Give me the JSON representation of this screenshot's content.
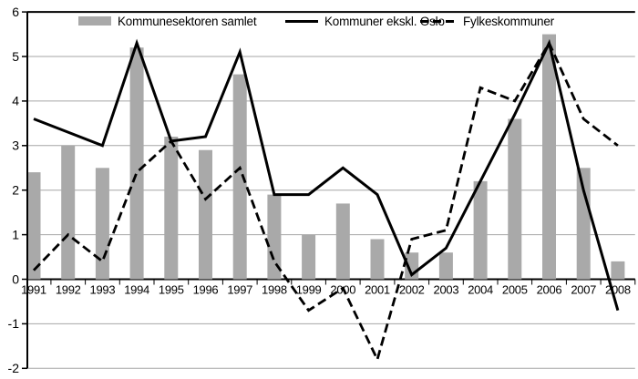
{
  "chart_data": {
    "type": "combo_bar_line",
    "title": "",
    "categories": [
      "1991",
      "1992",
      "1993",
      "1994",
      "1995",
      "1996",
      "1997",
      "1998",
      "1999",
      "2000",
      "2001",
      "2002",
      "2003",
      "2004",
      "2005",
      "2006",
      "2007",
      "2008"
    ],
    "series": [
      {
        "name": "Kommunesektoren samlet",
        "type": "bar",
        "color": "#a9a9a9",
        "values": [
          2.4,
          3.0,
          2.5,
          5.2,
          3.2,
          2.9,
          4.6,
          1.9,
          1.0,
          1.7,
          0.9,
          0.6,
          0.6,
          2.2,
          3.6,
          5.5,
          2.5,
          0.4
        ]
      },
      {
        "name": "Kommuner ekskl. Oslo",
        "type": "line",
        "style": "solid",
        "color": "#000000",
        "values": [
          3.6,
          3.3,
          3.0,
          5.3,
          3.1,
          3.2,
          5.1,
          1.9,
          1.9,
          2.5,
          1.9,
          0.1,
          0.7,
          2.2,
          3.7,
          5.3,
          2.0,
          -0.7
        ]
      },
      {
        "name": "Fylkeskommuner",
        "type": "line",
        "style": "dashed",
        "color": "#000000",
        "values": [
          0.2,
          1.0,
          0.4,
          2.4,
          3.1,
          1.8,
          2.5,
          0.4,
          -0.7,
          -0.2,
          -1.8,
          0.9,
          1.1,
          4.3,
          4.0,
          5.3,
          3.6,
          3.0
        ]
      }
    ],
    "xlabel": "",
    "ylabel": "",
    "ylim": [
      -2,
      6
    ],
    "yticks": [
      -2,
      -1,
      0,
      1,
      2,
      3,
      4,
      5,
      6
    ],
    "grid": true,
    "gridline_color": "#a6a6a6",
    "axis_color": "#000000",
    "legend_position": "top"
  }
}
